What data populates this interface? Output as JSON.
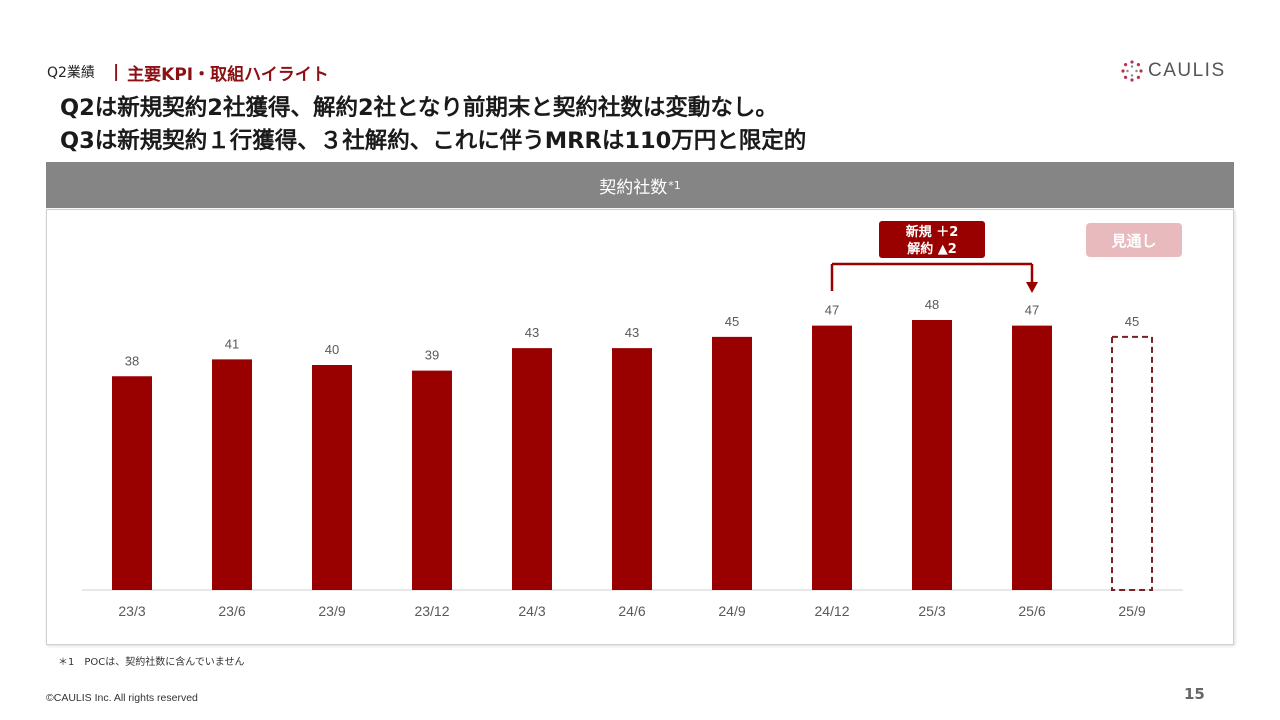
{
  "header": {
    "section": "Q2業績",
    "separator": "|",
    "title": "主要KPI・取組ハイライト",
    "logo_text": "CAULIS"
  },
  "headline": {
    "line1": "Q2は新規契約2社獲得、解約2社となり前期末と契約社数は変動なし。",
    "line2": "Q3は新規契約１行獲得、３社解約、これに伴うMRRは110万円と限定的"
  },
  "chart_header": {
    "title": "契約社数",
    "footnote_marker": "*1"
  },
  "chart_data": {
    "type": "bar",
    "title": "契約社数",
    "categories": [
      "23/3",
      "23/6",
      "23/9",
      "23/12",
      "24/3",
      "24/6",
      "24/9",
      "24/12",
      "25/3",
      "25/6",
      "25/9"
    ],
    "values": [
      38,
      41,
      40,
      39,
      43,
      43,
      45,
      47,
      48,
      47,
      45
    ],
    "forecast_index": 10,
    "annotation": {
      "line1": "新規 ＋2",
      "line2": "解約 ▲2",
      "from_category": "24/12",
      "to_category": "25/6"
    },
    "forecast_label": "見通し",
    "bar_color": "#990000",
    "forecast_color": "#7a2020",
    "ylim": [
      0,
      48
    ],
    "grid": false,
    "legend": "none"
  },
  "footnote": "＊1　POCは、契約社数に含んでいません",
  "copyright": "©CAULIS Inc. All rights reserved",
  "page_number": "15"
}
